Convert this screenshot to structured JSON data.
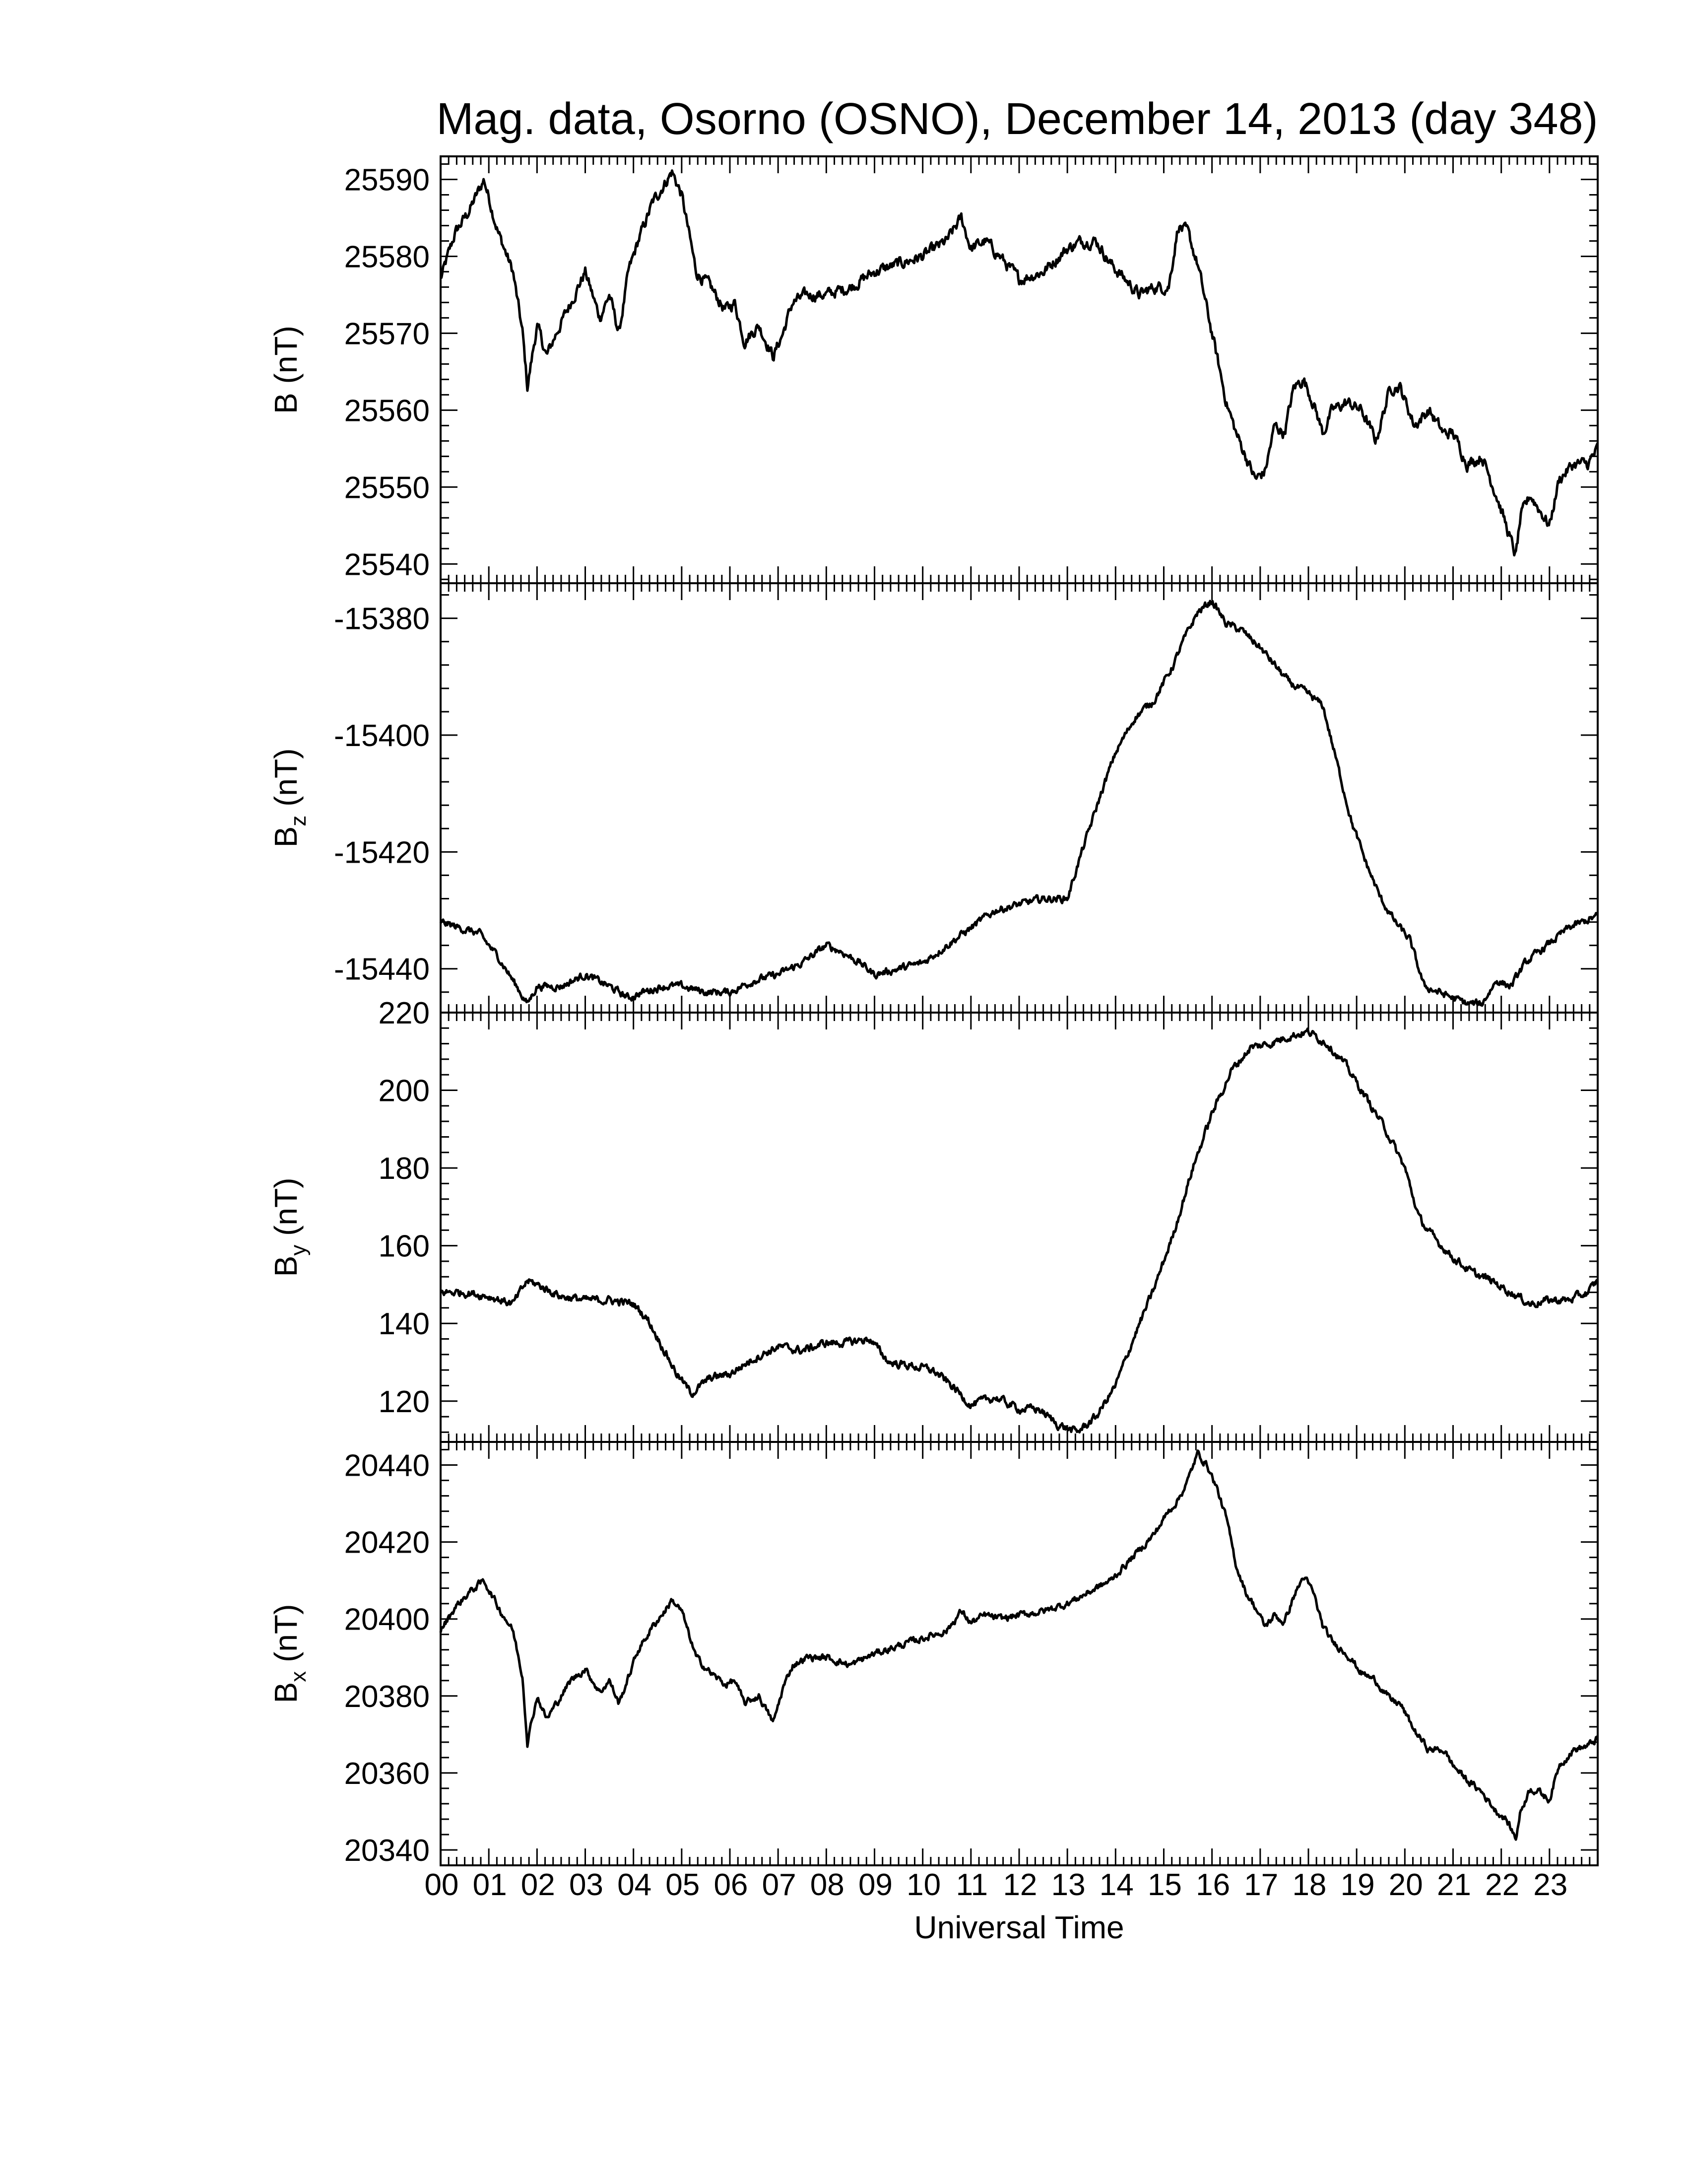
{
  "chart_data": {
    "title": "Mag. data, Osorno (OSNO), December 14, 2013 (day 348)",
    "xlabel": "Universal Time",
    "x_tick_labels": [
      "00",
      "01",
      "02",
      "03",
      "04",
      "05",
      "06",
      "07",
      "08",
      "09",
      "10",
      "11",
      "12",
      "13",
      "14",
      "15",
      "16",
      "17",
      "18",
      "19",
      "20",
      "21",
      "22",
      "23"
    ],
    "xlim": [
      0,
      24
    ],
    "panels": [
      {
        "type": "line",
        "ylabel": "B (nT)",
        "ylabel_main": "B",
        "ylabel_sub": "",
        "ylabel_unit": " (nT)",
        "ylim": [
          25537.5,
          25593
        ],
        "yticks": [
          "25540",
          "25550",
          "25560",
          "25570",
          "25580",
          "25590"
        ],
        "ytick_values": [
          25540,
          25550,
          25560,
          25570,
          25580,
          25590
        ],
        "x": [
          0,
          0.3,
          0.6,
          0.9,
          1.2,
          1.5,
          1.7,
          1.8,
          2.0,
          2.2,
          2.4,
          2.7,
          3.0,
          3.3,
          3.5,
          3.7,
          3.9,
          4.1,
          4.4,
          4.7,
          4.8,
          5.0,
          5.3,
          5.6,
          5.9,
          6.1,
          6.3,
          6.6,
          6.9,
          7.1,
          7.3,
          7.6,
          8.0,
          8.5,
          9.0,
          9.5,
          10.0,
          10.5,
          10.8,
          11.0,
          11.3,
          11.6,
          12.0,
          12.5,
          13.0,
          13.3,
          13.6,
          13.9,
          14.2,
          14.5,
          14.8,
          15.1,
          15.3,
          15.5,
          15.7,
          15.9,
          16.1,
          16.3,
          16.5,
          16.7,
          16.9,
          17.1,
          17.3,
          17.5,
          17.7,
          17.9,
          18.1,
          18.3,
          18.5,
          18.8,
          19.1,
          19.4,
          19.7,
          19.9,
          20.2,
          20.5,
          20.8,
          21.0,
          21.3,
          21.6,
          21.9,
          22.1,
          22.3,
          22.4,
          22.6,
          22.8,
          23.0,
          23.2,
          23.5,
          23.8,
          24.0
        ],
        "values": [
          25577,
          25583,
          25586,
          25590,
          25583,
          25578,
          25570,
          25563,
          25571,
          25567,
          25570,
          25574,
          25578,
          25572,
          25575,
          25570,
          25578,
          25582,
          25587,
          25590,
          25591,
          25588,
          25578,
          25576,
          25573,
          25574,
          25569,
          25571,
          25567,
          25570,
          25574,
          25575,
          25575,
          25576,
          25578,
          25579,
          25580,
          25582,
          25585,
          25581,
          25582,
          25580,
          25577,
          25578,
          25581,
          25582,
          25582,
          25579,
          25577,
          25575,
          25576,
          25576,
          25584,
          25583,
          25579,
          25573,
          25567,
          25561,
          25557,
          25554,
          25551,
          25552,
          25558,
          25557,
          25563,
          25564,
          25561,
          25557,
          25560,
          25561,
          25560,
          25556,
          25563,
          25563,
          25558,
          25560,
          25557,
          25557,
          25553,
          25554,
          25549,
          25545,
          25541,
          25546,
          25549,
          25547,
          25545,
          25551,
          25553,
          25553,
          25555
        ],
        "noise": 0.6
      },
      {
        "type": "line",
        "ylabel": "Bz (nT)",
        "ylabel_main": "B",
        "ylabel_sub": "z",
        "ylabel_unit": " (nT)",
        "ylim": [
          -15447.5,
          -15374
        ],
        "yticks": [
          "-15440",
          "-15420",
          "-15400",
          "-15380"
        ],
        "ytick_values": [
          -15440,
          -15420,
          -15400,
          -15380
        ],
        "x": [
          0,
          0.4,
          0.8,
          1.2,
          1.5,
          1.8,
          2.0,
          2.5,
          3.0,
          3.5,
          3.9,
          4.2,
          4.6,
          5.0,
          5.5,
          6.0,
          6.5,
          7.0,
          7.5,
          8.0,
          8.3,
          8.7,
          9.0,
          9.5,
          10.0,
          10.5,
          11.0,
          11.5,
          12.0,
          12.5,
          13.0,
          13.3,
          13.7,
          14.0,
          14.4,
          14.8,
          15.2,
          15.4,
          15.7,
          16.0,
          16.3,
          16.6,
          17.0,
          17.3,
          17.6,
          18.0,
          18.3,
          18.6,
          18.9,
          19.2,
          19.5,
          19.8,
          20.1,
          20.4,
          20.7,
          21.0,
          21.3,
          21.6,
          21.9,
          22.2,
          22.5,
          22.8,
          23.1,
          23.4,
          23.7,
          24.0
        ],
        "values": [
          -15432,
          -15433,
          -15434,
          -15438,
          -15442,
          -15446,
          -15443,
          -15443,
          -15441,
          -15443,
          -15445,
          -15444,
          -15443,
          -15443,
          -15444,
          -15444,
          -15442,
          -15441,
          -15439,
          -15436,
          -15437,
          -15439,
          -15441,
          -15440,
          -15439,
          -15436,
          -15433,
          -15430,
          -15429,
          -15428,
          -15428,
          -15420,
          -15410,
          -15403,
          -15397,
          -15394,
          -15388,
          -15384,
          -15379,
          -15377,
          -15381,
          -15382,
          -15385,
          -15388,
          -15391,
          -15393,
          -15395,
          -15405,
          -15415,
          -15422,
          -15428,
          -15432,
          -15435,
          -15443,
          -15444,
          -15445,
          -15446,
          -15446,
          -15442,
          -15443,
          -15439,
          -15437,
          -15435,
          -15433,
          -15432,
          -15431
        ],
        "noise": 0.5
      },
      {
        "type": "line",
        "ylabel": "By (nT)",
        "ylabel_main": "B",
        "ylabel_sub": "y",
        "ylabel_unit": " (nT)",
        "ylim": [
          109.5,
          220
        ],
        "yticks": [
          "120",
          "140",
          "160",
          "180",
          "200",
          "220"
        ],
        "ytick_values": [
          120,
          140,
          160,
          180,
          200,
          220
        ],
        "x": [
          0,
          0.5,
          1.0,
          1.5,
          1.8,
          2.0,
          2.5,
          3.0,
          3.5,
          4.0,
          4.3,
          4.6,
          4.9,
          5.2,
          5.6,
          6.0,
          6.5,
          7.0,
          7.5,
          8.0,
          8.4,
          8.9,
          9.3,
          9.8,
          10.2,
          10.6,
          11.0,
          11.5,
          12.0,
          12.4,
          12.8,
          13.2,
          13.6,
          14.0,
          14.4,
          14.8,
          15.2,
          15.6,
          16.0,
          16.4,
          16.8,
          17.2,
          17.6,
          18.0,
          18.4,
          18.8,
          19.2,
          19.6,
          20.0,
          20.3,
          20.6,
          21.0,
          21.4,
          21.8,
          22.2,
          22.6,
          23.0,
          23.4,
          23.8,
          24.0
        ],
        "values": [
          148,
          148,
          147,
          145,
          151,
          150,
          147,
          146,
          146,
          145,
          141,
          134,
          127,
          122,
          126,
          127,
          131,
          134,
          133,
          135,
          135,
          136,
          130,
          129,
          128,
          124,
          119,
          121,
          118,
          118,
          114,
          112,
          116,
          124,
          137,
          149,
          163,
          180,
          194,
          205,
          211,
          212,
          214,
          215,
          212,
          206,
          198,
          190,
          180,
          167,
          162,
          157,
          153,
          151,
          148,
          145,
          146,
          146,
          148,
          151
        ],
        "noise": 0.8
      },
      {
        "type": "line",
        "ylabel": "Bx (nT)",
        "ylabel_main": "B",
        "ylabel_sub": "x",
        "ylabel_unit": " (nT)",
        "ylim": [
          20336,
          20446
        ],
        "yticks": [
          "20340",
          "20360",
          "20380",
          "20400",
          "20420",
          "20440"
        ],
        "ytick_values": [
          20340,
          20360,
          20380,
          20400,
          20420,
          20440
        ],
        "x": [
          0,
          0.3,
          0.6,
          0.9,
          1.2,
          1.5,
          1.7,
          1.8,
          2.0,
          2.2,
          2.4,
          2.7,
          3.0,
          3.3,
          3.5,
          3.7,
          3.9,
          4.1,
          4.4,
          4.7,
          4.8,
          5.0,
          5.3,
          5.6,
          5.9,
          6.1,
          6.3,
          6.6,
          6.9,
          7.1,
          7.3,
          7.6,
          8.0,
          8.5,
          9.0,
          9.5,
          10.0,
          10.5,
          10.8,
          11.0,
          11.3,
          11.6,
          12.0,
          12.5,
          13.0,
          13.3,
          13.6,
          13.9,
          14.2,
          14.5,
          14.8,
          15.1,
          15.3,
          15.5,
          15.7,
          15.9,
          16.1,
          16.3,
          16.5,
          16.7,
          16.9,
          17.1,
          17.3,
          17.5,
          17.7,
          17.9,
          18.1,
          18.3,
          18.5,
          18.8,
          19.1,
          19.4,
          19.7,
          19.9,
          20.2,
          20.5,
          20.8,
          21.0,
          21.3,
          21.6,
          21.9,
          22.1,
          22.3,
          22.4,
          22.6,
          22.8,
          23.0,
          23.2,
          23.5,
          23.8,
          24.0
        ],
        "values": [
          20397,
          20403,
          20407,
          20410,
          20403,
          20397,
          20385,
          20368,
          20380,
          20374,
          20378,
          20384,
          20387,
          20381,
          20384,
          20378,
          20385,
          20392,
          20398,
          20403,
          20405,
          20402,
          20390,
          20386,
          20383,
          20384,
          20378,
          20380,
          20373,
          20382,
          20388,
          20390,
          20390,
          20388,
          20391,
          20393,
          20395,
          20397,
          20402,
          20399,
          20401,
          20400,
          20401,
          20402,
          20404,
          20406,
          20408,
          20410,
          20414,
          20418,
          20422,
          20428,
          20431,
          20436,
          20443,
          20440,
          20434,
          20426,
          20414,
          20407,
          20403,
          20398,
          20401,
          20399,
          20406,
          20411,
          20407,
          20398,
          20394,
          20391,
          20386,
          20384,
          20379,
          20378,
          20371,
          20366,
          20366,
          20362,
          20358,
          20355,
          20350,
          20348,
          20343,
          20350,
          20356,
          20355,
          20353,
          20362,
          20366,
          20367,
          20369
        ],
        "noise": 0.7
      }
    ]
  }
}
